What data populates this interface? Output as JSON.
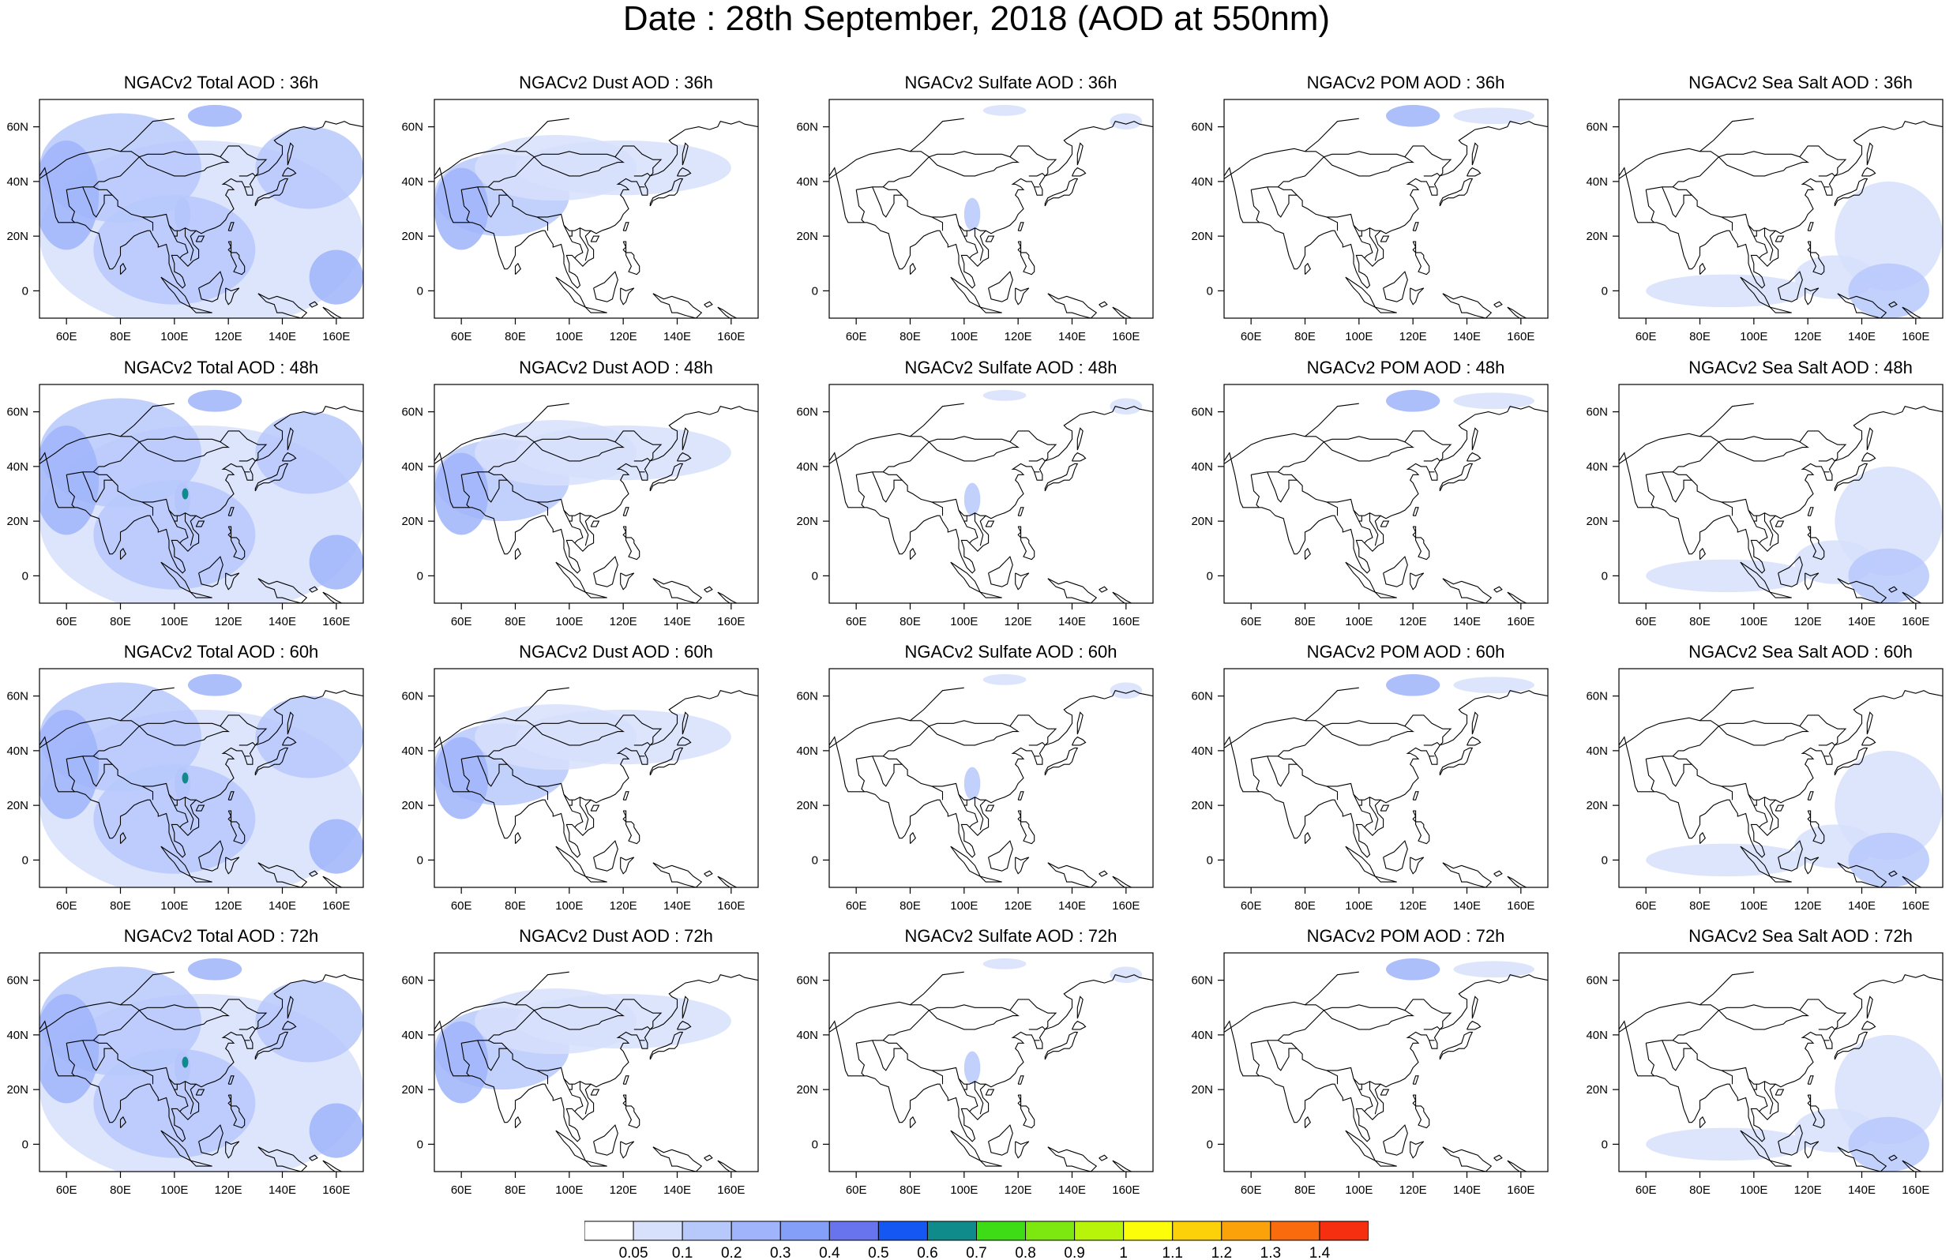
{
  "title": "Date : 28th September, 2018 (AOD at 550nm)",
  "lon_ticks": [
    "60E",
    "80E",
    "100E",
    "120E",
    "140E",
    "160E"
  ],
  "lat_ticks": [
    "60N",
    "40N",
    "20N",
    "0"
  ],
  "panels": [
    {
      "title": "NGACv2 Total AOD : 36h",
      "species": "total",
      "hour": 36
    },
    {
      "title": "NGACv2 Dust AOD : 36h",
      "species": "dust",
      "hour": 36
    },
    {
      "title": "NGACv2 Sulfate AOD : 36h",
      "species": "sulfate",
      "hour": 36
    },
    {
      "title": "NGACv2 POM AOD : 36h",
      "species": "pom",
      "hour": 36
    },
    {
      "title": "NGACv2 Sea Salt AOD : 36h",
      "species": "seasalt",
      "hour": 36
    },
    {
      "title": "NGACv2 Total AOD : 48h",
      "species": "total",
      "hour": 48
    },
    {
      "title": "NGACv2 Dust AOD : 48h",
      "species": "dust",
      "hour": 48
    },
    {
      "title": "NGACv2 Sulfate AOD : 48h",
      "species": "sulfate",
      "hour": 48
    },
    {
      "title": "NGACv2 POM AOD : 48h",
      "species": "pom",
      "hour": 48
    },
    {
      "title": "NGACv2 Sea Salt AOD : 48h",
      "species": "seasalt",
      "hour": 48
    },
    {
      "title": "NGACv2 Total AOD : 60h",
      "species": "total",
      "hour": 60
    },
    {
      "title": "NGACv2 Dust AOD : 60h",
      "species": "dust",
      "hour": 60
    },
    {
      "title": "NGACv2 Sulfate AOD : 60h",
      "species": "sulfate",
      "hour": 60
    },
    {
      "title": "NGACv2 POM AOD : 60h",
      "species": "pom",
      "hour": 60
    },
    {
      "title": "NGACv2 Sea Salt AOD : 60h",
      "species": "seasalt",
      "hour": 60
    },
    {
      "title": "NGACv2 Total AOD : 72h",
      "species": "total",
      "hour": 72
    },
    {
      "title": "NGACv2 Dust AOD : 72h",
      "species": "dust",
      "hour": 72
    },
    {
      "title": "NGACv2 Sulfate AOD : 72h",
      "species": "sulfate",
      "hour": 72
    },
    {
      "title": "NGACv2 POM AOD : 72h",
      "species": "pom",
      "hour": 72
    },
    {
      "title": "NGACv2 Sea Salt  AOD : 72h",
      "species": "seasalt",
      "hour": 72
    }
  ],
  "colorbar": {
    "labels": [
      "0.05",
      "0.1",
      "0.2",
      "0.3",
      "0.4",
      "0.5",
      "0.6",
      "0.7",
      "0.8",
      "0.9",
      "1",
      "1.1",
      "1.2",
      "1.3",
      "1.4"
    ],
    "colors": [
      "#ffffff",
      "#d7e1fc",
      "#b7c8fb",
      "#9fb4fa",
      "#849ff8",
      "#6873ee",
      "#1557f3",
      "#0f8b8b",
      "#3ddc17",
      "#7de80f",
      "#b8f30a",
      "#fcfd09",
      "#fcd109",
      "#fba10a",
      "#f96b0c",
      "#f52f10"
    ]
  }
}
